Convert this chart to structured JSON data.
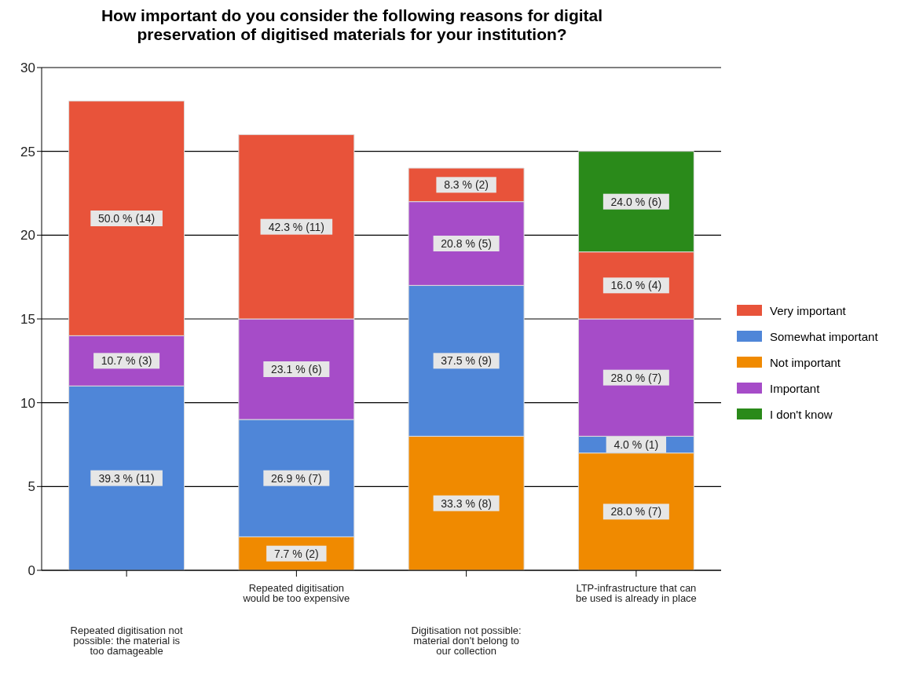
{
  "chart_data": {
    "type": "bar",
    "title": "How important do you consider the following reasons for digital preservation of digitised materials for your institution?",
    "categories": [
      "Repeated digitisation not possible: the material is too damageable",
      "Repeated digitisation would be too expensive",
      "Digitisation not possible: material don't belong to our collection",
      "LTP-infrastructure that can be used is already in place"
    ],
    "stacked": true,
    "series": [
      {
        "name": "Not important",
        "color": "#f08a00",
        "values": [
          0,
          2,
          8,
          7
        ],
        "value_labels": [
          null,
          "7.7 % (2)",
          "33.3 % (8)",
          "28.0 % (7)"
        ]
      },
      {
        "name": "Somewhat important",
        "color": "#4f86d8",
        "values": [
          11,
          7,
          9,
          1
        ],
        "value_labels": [
          "39.3 % (11)",
          "26.9 % (7)",
          "37.5 % (9)",
          "4.0 % (1)"
        ]
      },
      {
        "name": "Important",
        "color": "#a64cc8",
        "values": [
          3,
          6,
          5,
          7
        ],
        "value_labels": [
          "10.7 % (3)",
          "23.1 % (6)",
          "20.8 % (5)",
          "28.0 % (7)"
        ]
      },
      {
        "name": "Very important",
        "color": "#e8533a",
        "values": [
          14,
          11,
          2,
          4
        ],
        "value_labels": [
          "50.0 % (14)",
          "42.3 % (11)",
          "8.3 % (2)",
          "16.0 % (4)"
        ]
      },
      {
        "name": "I don't know",
        "color": "#2a8a1a",
        "values": [
          0,
          0,
          0,
          6
        ],
        "value_labels": [
          null,
          null,
          null,
          "24.0 % (6)"
        ]
      }
    ],
    "ylim": [
      0,
      30
    ],
    "yticks": [
      0,
      5,
      10,
      15,
      20,
      25,
      30
    ],
    "grid": "y",
    "legend": "right"
  }
}
